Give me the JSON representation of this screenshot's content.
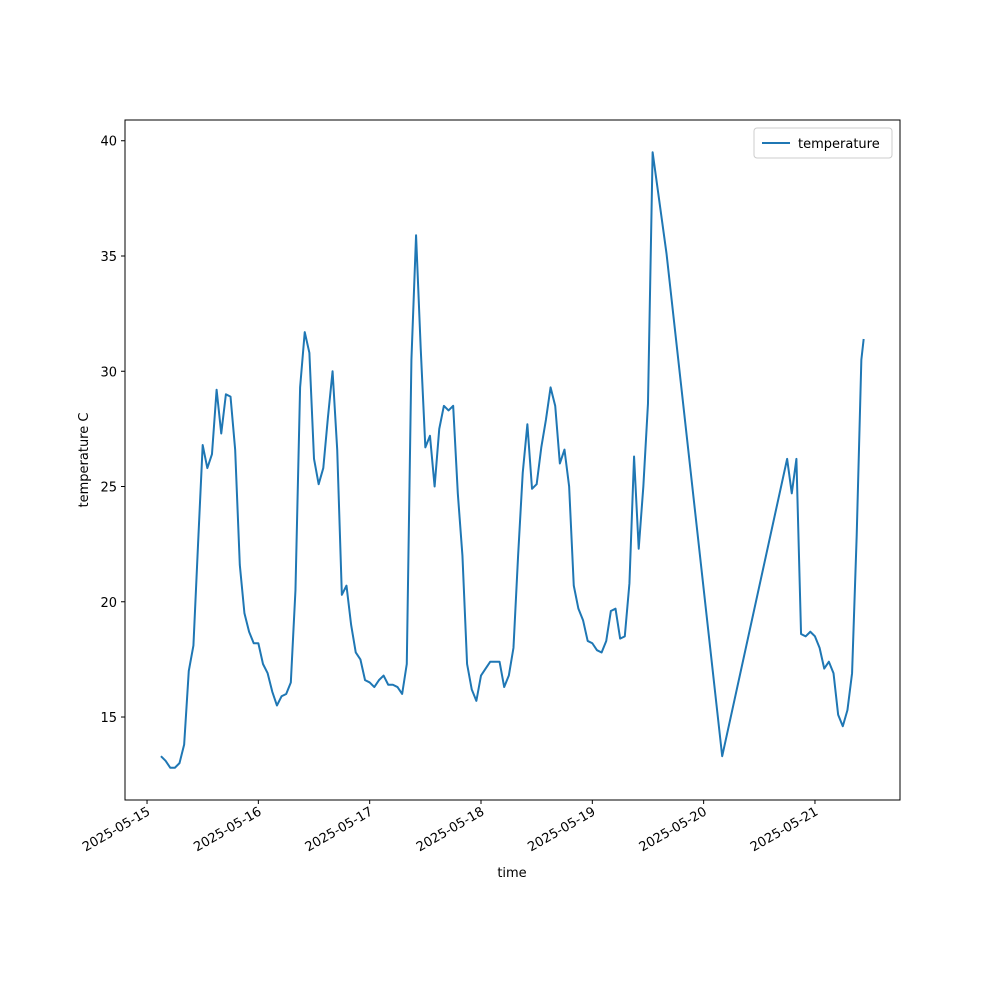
{
  "chart_data": {
    "type": "line",
    "xlabel": "time",
    "ylabel": "temperature C",
    "legend": "upper right",
    "xlim": [
      "2025-05-14T19:15",
      "2025-05-21T18:20"
    ],
    "xticks": [
      "2025-05-15",
      "2025-05-16",
      "2025-05-17",
      "2025-05-18",
      "2025-05-19",
      "2025-05-20",
      "2025-05-21"
    ],
    "ylim": [
      11.4,
      40.9
    ],
    "yticks": [
      15,
      20,
      25,
      30,
      35,
      40
    ],
    "x": [
      "2025-05-15T03:00",
      "2025-05-15T04:00",
      "2025-05-15T05:00",
      "2025-05-15T06:00",
      "2025-05-15T07:00",
      "2025-05-15T08:00",
      "2025-05-15T09:00",
      "2025-05-15T10:00",
      "2025-05-15T11:00",
      "2025-05-15T12:00",
      "2025-05-15T13:00",
      "2025-05-15T14:00",
      "2025-05-15T15:00",
      "2025-05-15T16:00",
      "2025-05-15T17:00",
      "2025-05-15T18:00",
      "2025-05-15T19:00",
      "2025-05-15T20:00",
      "2025-05-15T21:00",
      "2025-05-15T22:00",
      "2025-05-15T23:00",
      "2025-05-16T00:00",
      "2025-05-16T01:00",
      "2025-05-16T02:00",
      "2025-05-16T03:00",
      "2025-05-16T04:00",
      "2025-05-16T05:00",
      "2025-05-16T06:00",
      "2025-05-16T07:00",
      "2025-05-16T08:00",
      "2025-05-16T09:00",
      "2025-05-16T10:00",
      "2025-05-16T11:00",
      "2025-05-16T12:00",
      "2025-05-16T13:00",
      "2025-05-16T14:00",
      "2025-05-16T15:00",
      "2025-05-16T16:00",
      "2025-05-16T17:00",
      "2025-05-16T18:00",
      "2025-05-16T19:00",
      "2025-05-16T20:00",
      "2025-05-16T21:00",
      "2025-05-16T22:00",
      "2025-05-16T23:00",
      "2025-05-17T00:00",
      "2025-05-17T01:00",
      "2025-05-17T02:00",
      "2025-05-17T03:00",
      "2025-05-17T04:00",
      "2025-05-17T05:00",
      "2025-05-17T06:00",
      "2025-05-17T07:00",
      "2025-05-17T08:00",
      "2025-05-17T09:00",
      "2025-05-17T10:00",
      "2025-05-17T11:00",
      "2025-05-17T12:00",
      "2025-05-17T13:00",
      "2025-05-17T14:00",
      "2025-05-17T15:00",
      "2025-05-17T16:00",
      "2025-05-17T17:00",
      "2025-05-17T18:00",
      "2025-05-17T19:00",
      "2025-05-17T20:00",
      "2025-05-17T21:00",
      "2025-05-17T22:00",
      "2025-05-17T23:00",
      "2025-05-18T00:00",
      "2025-05-18T01:00",
      "2025-05-18T02:00",
      "2025-05-18T03:00",
      "2025-05-18T04:00",
      "2025-05-18T05:00",
      "2025-05-18T06:00",
      "2025-05-18T07:00",
      "2025-05-18T08:00",
      "2025-05-18T09:00",
      "2025-05-18T10:00",
      "2025-05-18T11:00",
      "2025-05-18T12:00",
      "2025-05-18T13:00",
      "2025-05-18T14:00",
      "2025-05-18T15:00",
      "2025-05-18T16:00",
      "2025-05-18T17:00",
      "2025-05-18T18:00",
      "2025-05-18T19:00",
      "2025-05-18T20:00",
      "2025-05-18T21:00",
      "2025-05-18T22:00",
      "2025-05-18T23:00",
      "2025-05-19T00:00",
      "2025-05-19T01:00",
      "2025-05-19T02:00",
      "2025-05-19T03:00",
      "2025-05-19T04:00",
      "2025-05-19T05:00",
      "2025-05-19T06:00",
      "2025-05-19T07:00",
      "2025-05-19T08:00",
      "2025-05-19T09:00",
      "2025-05-19T10:00",
      "2025-05-19T11:00",
      "2025-05-19T12:00",
      "2025-05-19T13:00",
      "2025-05-19T16:00",
      "2025-05-20T04:00",
      "2025-05-20T18:00",
      "2025-05-20T19:00",
      "2025-05-20T20:00",
      "2025-05-20T21:00",
      "2025-05-20T22:00",
      "2025-05-20T23:00",
      "2025-05-21T00:00",
      "2025-05-21T01:00",
      "2025-05-21T02:00",
      "2025-05-21T03:00",
      "2025-05-21T04:00",
      "2025-05-21T05:00",
      "2025-05-21T06:00",
      "2025-05-21T07:00",
      "2025-05-21T08:00",
      "2025-05-21T09:00",
      "2025-05-21T10:00",
      "2025-05-21T10:30"
    ],
    "series": [
      {
        "name": "temperature",
        "color": "#1f77b4",
        "values": [
          13.3,
          13.1,
          12.8,
          12.8,
          13.0,
          13.8,
          17.0,
          18.1,
          22.5,
          26.8,
          25.8,
          26.4,
          29.2,
          27.3,
          29.0,
          28.9,
          26.6,
          21.6,
          19.5,
          18.7,
          18.2,
          18.2,
          17.3,
          16.9,
          16.1,
          15.5,
          15.9,
          16.0,
          16.5,
          20.5,
          29.3,
          31.7,
          30.8,
          26.2,
          25.1,
          25.8,
          28.0,
          30.0,
          26.6,
          20.3,
          20.7,
          19.0,
          17.8,
          17.5,
          16.6,
          16.5,
          16.3,
          16.6,
          16.8,
          16.4,
          16.4,
          16.3,
          16.0,
          17.3,
          30.5,
          35.9,
          31.0,
          26.7,
          27.2,
          25.0,
          27.5,
          28.5,
          28.3,
          28.5,
          24.7,
          22.0,
          17.3,
          16.2,
          15.7,
          16.8,
          17.1,
          17.4,
          17.4,
          17.4,
          16.3,
          16.8,
          18.0,
          22.0,
          25.6,
          27.7,
          24.9,
          25.1,
          26.7,
          27.9,
          29.3,
          28.5,
          26.0,
          26.6,
          25.0,
          20.7,
          19.7,
          19.2,
          18.3,
          18.2,
          17.9,
          17.8,
          18.3,
          19.6,
          19.7,
          18.4,
          18.5,
          20.8,
          26.3,
          22.3,
          25.0,
          28.6,
          39.5,
          35.1,
          13.3,
          26.2,
          24.7,
          26.2,
          18.6,
          18.5,
          18.7,
          18.5,
          18.0,
          17.1,
          17.4,
          16.9,
          15.1,
          14.6,
          15.3,
          16.9,
          22.9,
          30.5,
          31.4
        ]
      }
    ]
  }
}
